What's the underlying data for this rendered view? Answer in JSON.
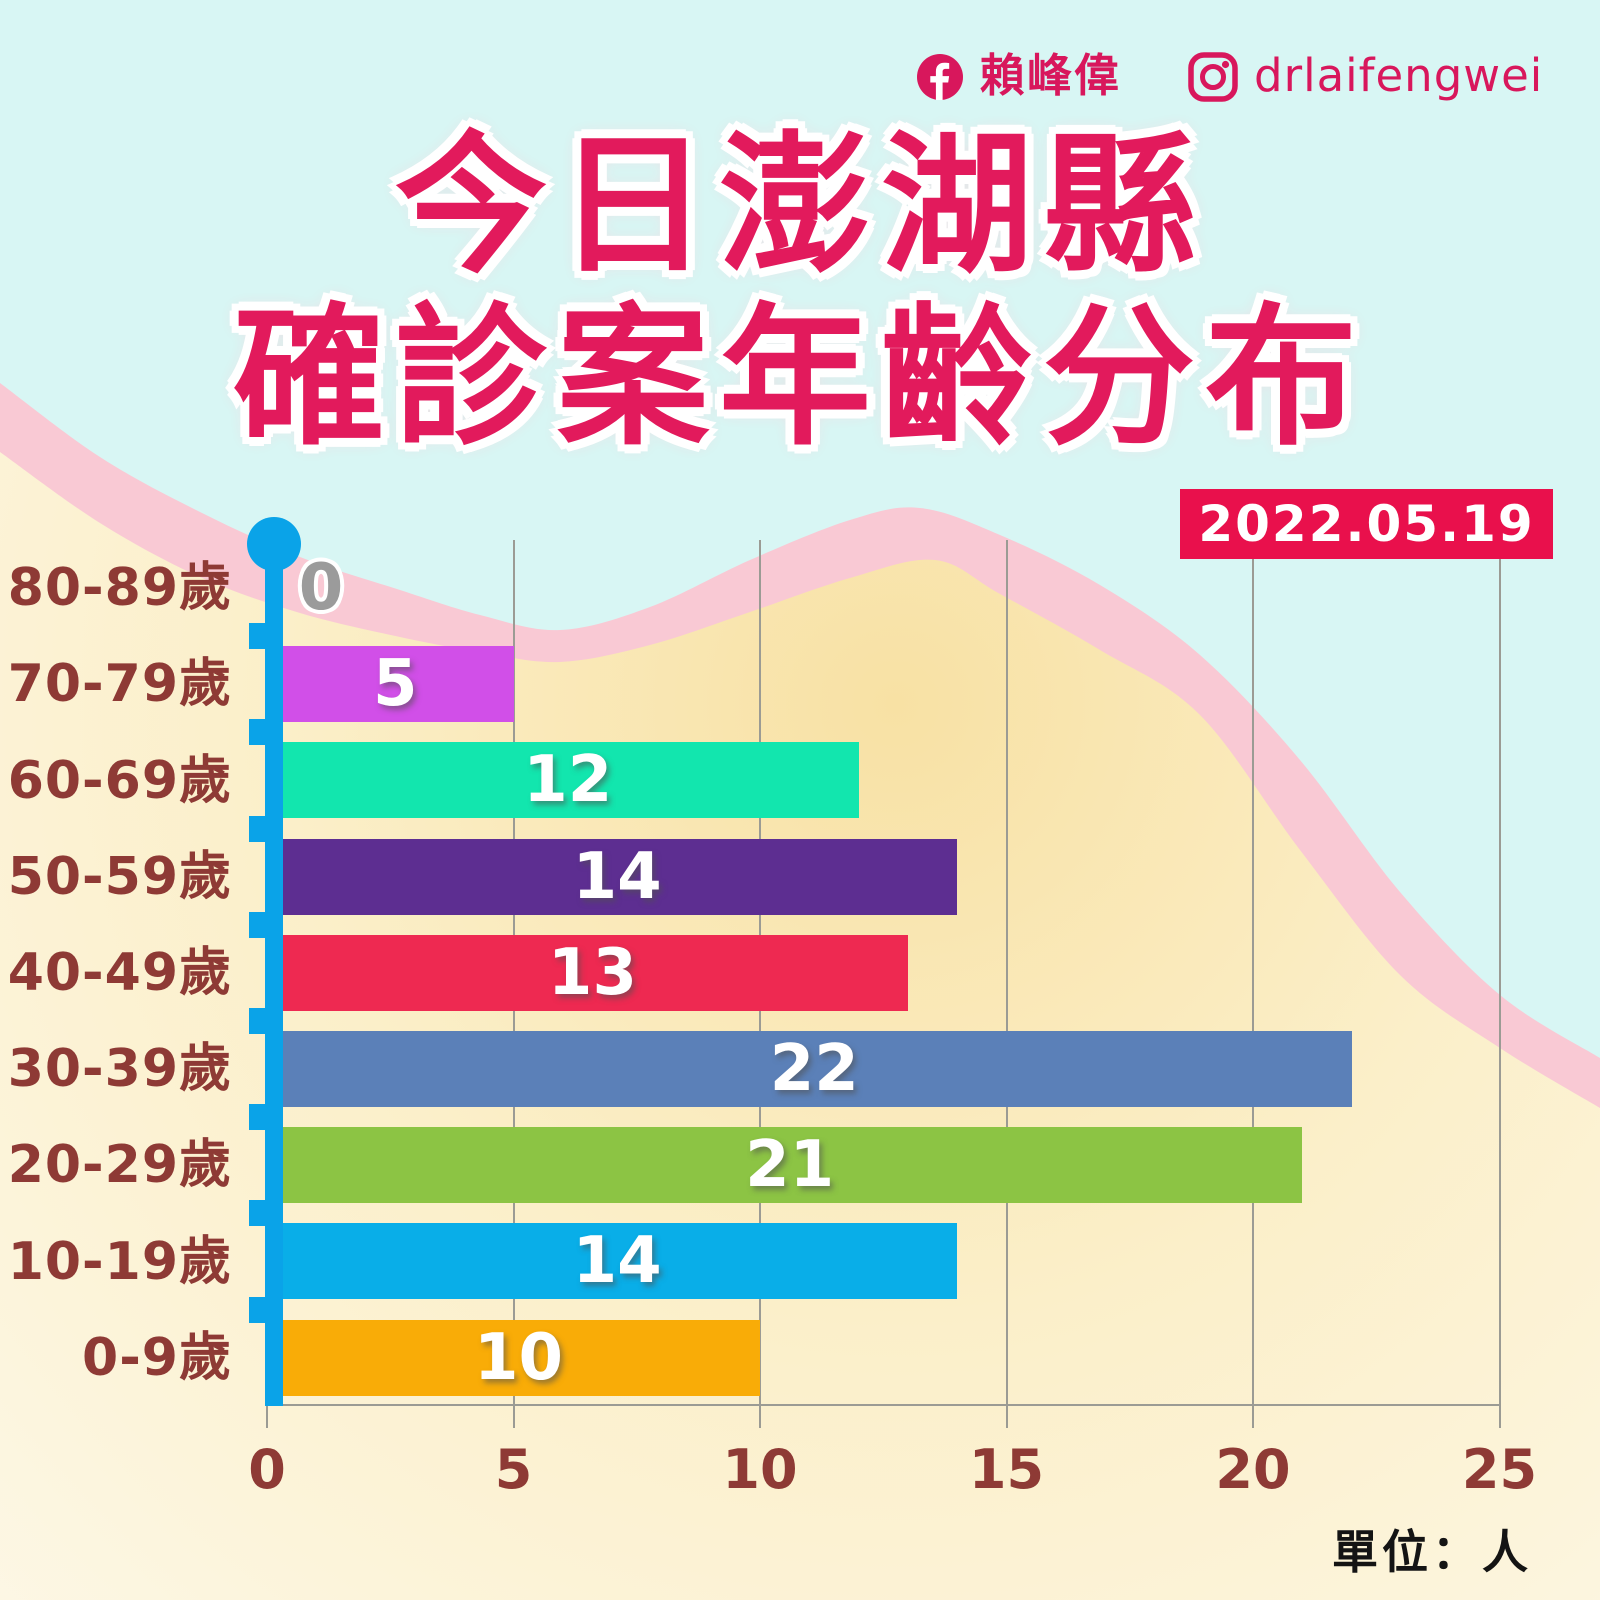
{
  "social": {
    "facebook_label": "賴峰偉",
    "instagram_label": "drlaifengwei"
  },
  "title": {
    "line1": "今日澎湖縣",
    "line2": "確診案年齡分布"
  },
  "date_badge": "2022.05.19",
  "unit_label": "單位：人",
  "colors": {
    "background_cyan": "#d8f6f4",
    "background_pink": "#f9c9d4",
    "background_cream_inner": "#f8e1a4",
    "background_cream_outer": "#fdf8e8",
    "title": "#e21a5c",
    "badge_background": "#e9104c",
    "badge_text": "#ffffff",
    "social": "#d8175c",
    "category_label": "#8e3a35",
    "axis_blue": "#0aa3e8",
    "gridline": "#9b9b94",
    "value_label": "#ffffff",
    "zero_label": "#9b9b9b",
    "unit_text": "#141414"
  },
  "chart_data": {
    "type": "bar",
    "orientation": "horizontal",
    "title": "今日澎湖縣確診案年齡分布",
    "date": "2022.05.19",
    "unit": "人",
    "categories": [
      "80-89歲",
      "70-79歲",
      "60-69歲",
      "50-59歲",
      "40-49歲",
      "30-39歲",
      "20-29歲",
      "10-19歲",
      "0-9歲"
    ],
    "values": [
      0,
      5,
      12,
      14,
      13,
      22,
      21,
      14,
      10
    ],
    "bar_colors": [
      null,
      "#d14fe8",
      "#12e6ae",
      "#5d2e91",
      "#ee2951",
      "#5b80b8",
      "#8cc444",
      "#09aee8",
      "#f9ac07"
    ],
    "x_ticks": [
      "0",
      "5",
      "10",
      "15",
      "20",
      "25"
    ],
    "xlim": [
      0,
      25
    ],
    "grid": true,
    "legend": false
  }
}
